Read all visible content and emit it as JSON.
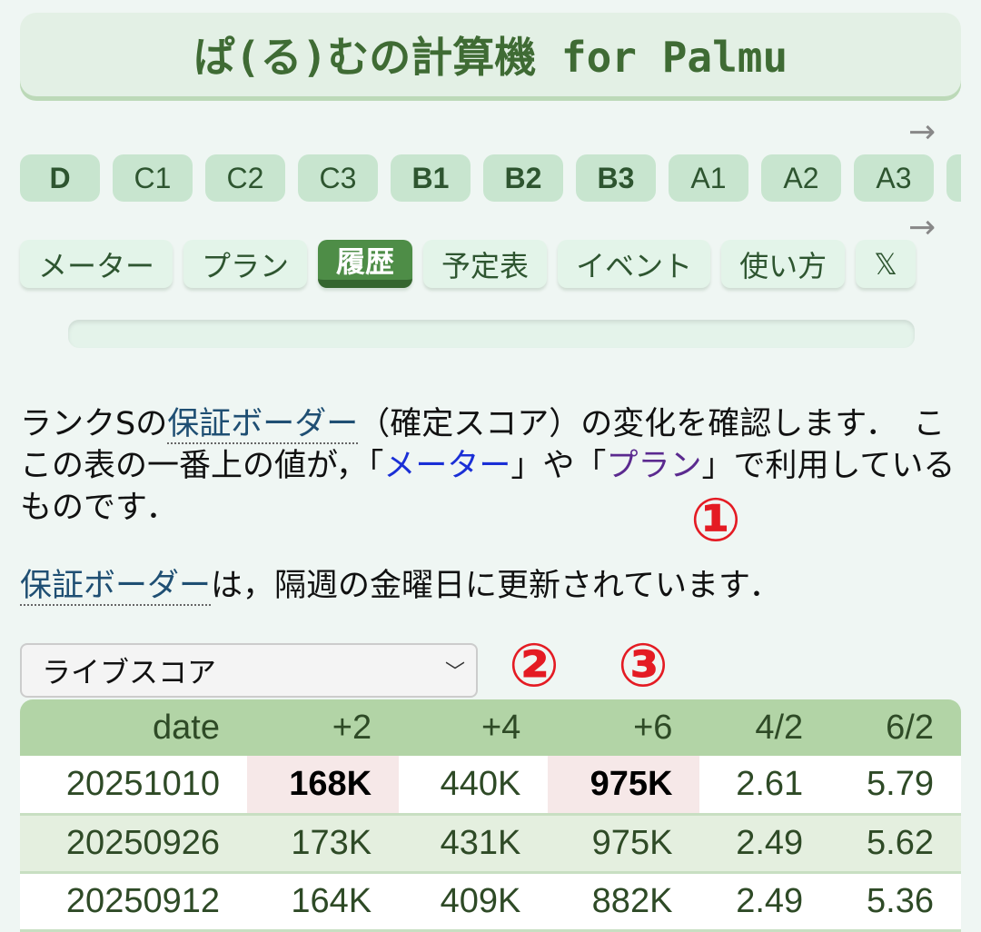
{
  "title": "ぱ(る)むの計算機 for Palmu",
  "scroll_arrow": "→",
  "ranks": [
    "D",
    "C1",
    "C2",
    "C3",
    "B1",
    "B2",
    "B3",
    "A1",
    "A2",
    "A3"
  ],
  "tabs": [
    "メーター",
    "プラン",
    "履歴",
    "予定表",
    "イベント",
    "使い方",
    "𝕏"
  ],
  "active_tab": "履歴",
  "intro": {
    "p1_a": "ランクSの",
    "p1_term": "保証ボーダー",
    "p1_b": "（確定スコア）の変化を確認します．　ここの表の一番上の値が，「",
    "link_meter": "メーター",
    "p1_c": "」や「",
    "link_plan": "プラン",
    "p1_d": "」で利用しているものです．",
    "p2_term": "保証ボーダー",
    "p2_b": "は，隔週の金曜日に更新されています．"
  },
  "select": {
    "value": "ライブスコア"
  },
  "table": {
    "headers": [
      "date",
      "+2",
      "+4",
      "+6",
      "4/2",
      "6/2"
    ],
    "rows": [
      [
        "20251010",
        "168K",
        "440K",
        "975K",
        "2.61",
        "5.79"
      ],
      [
        "20250926",
        "173K",
        "431K",
        "975K",
        "2.49",
        "5.62"
      ],
      [
        "20250912",
        "164K",
        "409K",
        "882K",
        "2.49",
        "5.36"
      ]
    ]
  },
  "annotations": [
    "①",
    "②",
    "③"
  ],
  "colors": {
    "accent": "#4e8d47",
    "header": "#b2d4a6",
    "highlight": "#f6e8e8",
    "annotation": "#e41b23"
  }
}
